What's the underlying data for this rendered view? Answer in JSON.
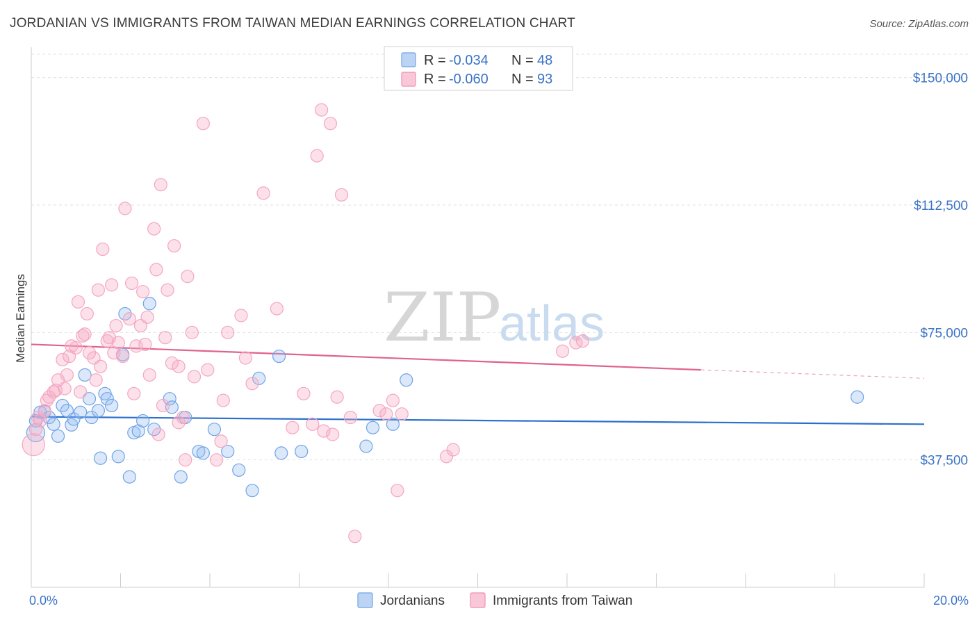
{
  "chart_data": {
    "type": "scatter",
    "title": "JORDANIAN VS IMMIGRANTS FROM TAIWAN MEDIAN EARNINGS CORRELATION CHART",
    "source": "Source: ZipAtlas.com",
    "ylabel": "Median Earnings",
    "xlim": [
      0,
      20
    ],
    "ylim": [
      0,
      157500
    ],
    "y_ticks": [
      {
        "value": 37500,
        "label": "$37,500"
      },
      {
        "value": 75000,
        "label": "$75,000"
      },
      {
        "value": 112500,
        "label": "$112,500"
      },
      {
        "value": 150000,
        "label": "$150,000"
      }
    ],
    "x_ticks": [
      {
        "value": 0,
        "label": "0.0%"
      },
      {
        "value": 20,
        "label": "20.0%"
      }
    ],
    "watermark": {
      "part1": "ZIP",
      "part2": "atlas"
    },
    "legend": {
      "r_label": "R =",
      "n_label": "N =",
      "entries": [
        {
          "r": "-0.034",
          "n": "48"
        },
        {
          "r": "-0.060",
          "n": "93"
        }
      ]
    },
    "series": [
      {
        "name": "Jordanians",
        "color": "#6fa3e8",
        "line_color": "#2b6fcc",
        "trend": {
          "x0": 0,
          "y0": 50200,
          "x1": 20,
          "y1": 48000,
          "solid_until": 20
        },
        "points": [
          [
            0.1,
            45500
          ],
          [
            0.1,
            49000
          ],
          [
            0.2,
            51500
          ],
          [
            0.3,
            51700
          ],
          [
            0.4,
            50000
          ],
          [
            0.5,
            48000
          ],
          [
            0.6,
            44500
          ],
          [
            0.7,
            53500
          ],
          [
            0.8,
            52000
          ],
          [
            0.9,
            47800
          ],
          [
            0.95,
            49500
          ],
          [
            1.1,
            51500
          ],
          [
            1.2,
            62500
          ],
          [
            1.3,
            55500
          ],
          [
            1.35,
            50000
          ],
          [
            1.5,
            52000
          ],
          [
            1.55,
            38000
          ],
          [
            1.65,
            57000
          ],
          [
            1.7,
            55500
          ],
          [
            1.8,
            53500
          ],
          [
            1.95,
            38500
          ],
          [
            2.05,
            68500
          ],
          [
            2.1,
            80500
          ],
          [
            2.2,
            32500
          ],
          [
            2.3,
            45500
          ],
          [
            2.4,
            46000
          ],
          [
            2.5,
            49000
          ],
          [
            2.65,
            83500
          ],
          [
            2.75,
            46500
          ],
          [
            3.1,
            55500
          ],
          [
            3.15,
            53000
          ],
          [
            3.35,
            32500
          ],
          [
            3.45,
            50000
          ],
          [
            3.75,
            40000
          ],
          [
            3.85,
            39500
          ],
          [
            4.1,
            46500
          ],
          [
            4.4,
            40000
          ],
          [
            4.65,
            34500
          ],
          [
            4.95,
            28500
          ],
          [
            5.1,
            61500
          ],
          [
            5.55,
            68000
          ],
          [
            5.6,
            39500
          ],
          [
            6.05,
            40000
          ],
          [
            7.5,
            41500
          ],
          [
            7.65,
            47000
          ],
          [
            8.1,
            48000
          ],
          [
            8.4,
            61000
          ],
          [
            18.5,
            56000
          ]
        ]
      },
      {
        "name": "Immigrants from Taiwan",
        "color": "#f4a6c0",
        "line_color": "#e0628f",
        "trend": {
          "x0": 0,
          "y0": 71500,
          "x1": 20,
          "y1": 61500,
          "solid_until": 15
        },
        "points": [
          [
            0.05,
            42000
          ],
          [
            0.1,
            46500
          ],
          [
            0.15,
            50000
          ],
          [
            0.2,
            49000
          ],
          [
            0.3,
            52000
          ],
          [
            0.35,
            55000
          ],
          [
            0.4,
            56000
          ],
          [
            0.5,
            57500
          ],
          [
            0.55,
            58000
          ],
          [
            0.6,
            61000
          ],
          [
            0.7,
            67000
          ],
          [
            0.75,
            58500
          ],
          [
            0.8,
            62500
          ],
          [
            0.85,
            68000
          ],
          [
            0.9,
            71000
          ],
          [
            1.0,
            70500
          ],
          [
            1.05,
            84000
          ],
          [
            1.1,
            57500
          ],
          [
            1.15,
            74000
          ],
          [
            1.2,
            74500
          ],
          [
            1.25,
            80500
          ],
          [
            1.3,
            69000
          ],
          [
            1.4,
            67500
          ],
          [
            1.45,
            61000
          ],
          [
            1.5,
            87500
          ],
          [
            1.55,
            65000
          ],
          [
            1.6,
            99500
          ],
          [
            1.7,
            72500
          ],
          [
            1.75,
            73500
          ],
          [
            1.8,
            89000
          ],
          [
            1.85,
            69000
          ],
          [
            1.9,
            77000
          ],
          [
            1.95,
            72000
          ],
          [
            2.05,
            68000
          ],
          [
            2.1,
            111500
          ],
          [
            2.2,
            79000
          ],
          [
            2.25,
            89500
          ],
          [
            2.3,
            57000
          ],
          [
            2.35,
            71000
          ],
          [
            2.45,
            77000
          ],
          [
            2.5,
            87000
          ],
          [
            2.55,
            71500
          ],
          [
            2.6,
            79500
          ],
          [
            2.65,
            62500
          ],
          [
            2.75,
            105500
          ],
          [
            2.8,
            93500
          ],
          [
            2.85,
            45000
          ],
          [
            2.9,
            118500
          ],
          [
            2.95,
            53500
          ],
          [
            3.0,
            73500
          ],
          [
            3.05,
            87500
          ],
          [
            3.15,
            66000
          ],
          [
            3.2,
            100500
          ],
          [
            3.3,
            65000
          ],
          [
            3.4,
            50000
          ],
          [
            3.45,
            37500
          ],
          [
            3.5,
            91500
          ],
          [
            3.6,
            75000
          ],
          [
            3.65,
            62000
          ],
          [
            3.85,
            136500
          ],
          [
            3.95,
            64000
          ],
          [
            4.15,
            37500
          ],
          [
            4.25,
            43000
          ],
          [
            4.3,
            55000
          ],
          [
            4.4,
            75000
          ],
          [
            4.7,
            80000
          ],
          [
            4.8,
            67500
          ],
          [
            4.95,
            60000
          ],
          [
            5.2,
            116000
          ],
          [
            5.5,
            82000
          ],
          [
            5.85,
            47000
          ],
          [
            6.1,
            57000
          ],
          [
            6.3,
            48000
          ],
          [
            6.4,
            127000
          ],
          [
            6.5,
            140500
          ],
          [
            6.55,
            46000
          ],
          [
            6.7,
            136500
          ],
          [
            6.75,
            45000
          ],
          [
            6.85,
            56000
          ],
          [
            6.95,
            115500
          ],
          [
            7.15,
            50000
          ],
          [
            7.25,
            15000
          ],
          [
            7.8,
            52000
          ],
          [
            7.95,
            51000
          ],
          [
            8.1,
            55000
          ],
          [
            8.2,
            28500
          ],
          [
            8.3,
            51000
          ],
          [
            9.3,
            38500
          ],
          [
            9.45,
            40500
          ],
          [
            11.9,
            69500
          ],
          [
            12.2,
            72000
          ],
          [
            12.35,
            72500
          ],
          [
            3.3,
            48500
          ]
        ]
      }
    ]
  }
}
